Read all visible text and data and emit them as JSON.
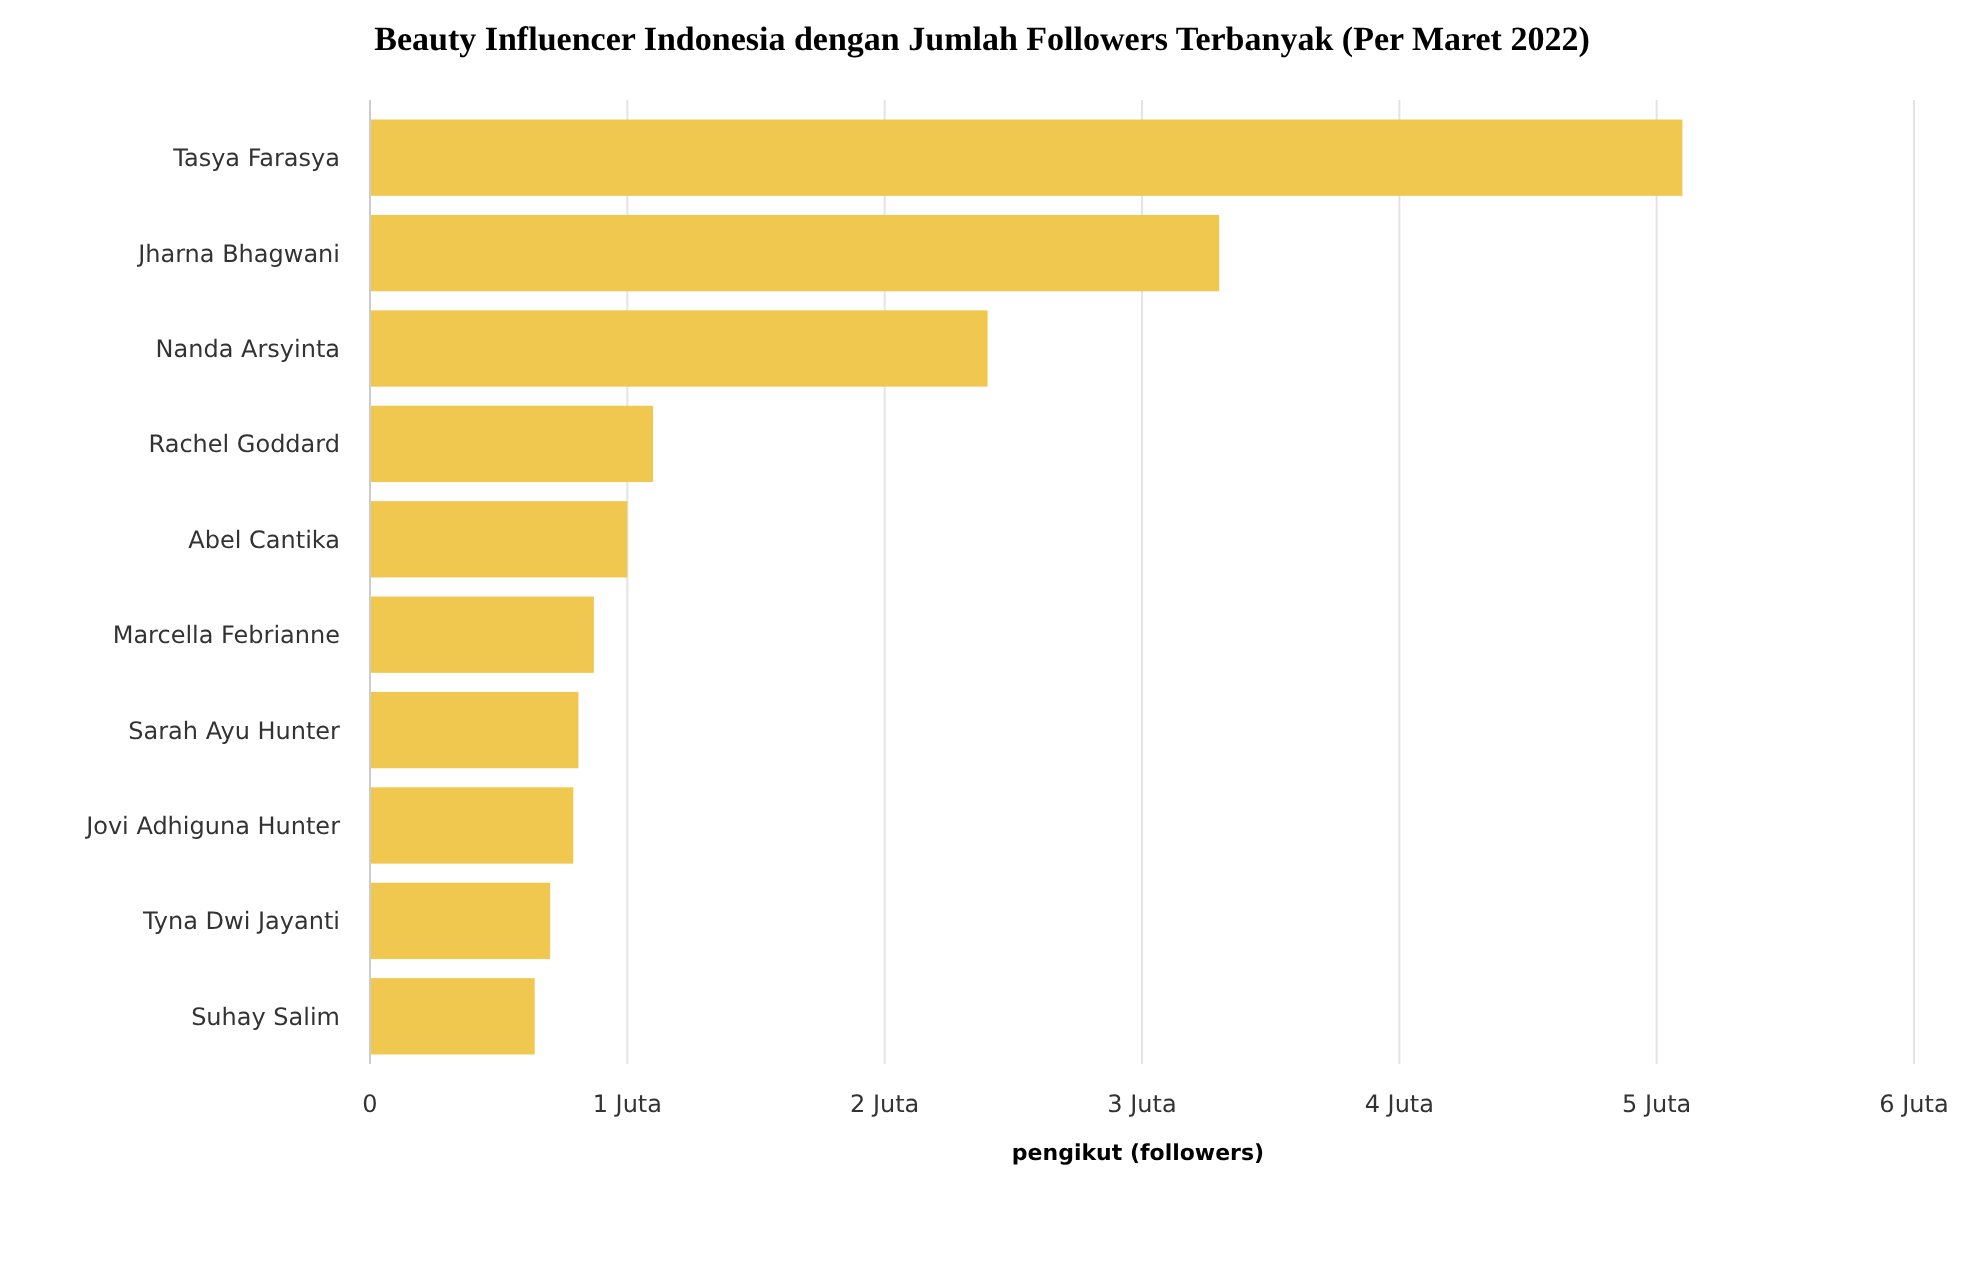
{
  "chart_data": {
    "type": "bar",
    "orientation": "horizontal",
    "title": "Beauty Influencer Indonesia dengan Jumlah Followers Terbanyak (Per Maret 2022)",
    "xlabel": "pengikut (followers)",
    "categories": [
      "Tasya Farasya",
      "Jharna Bhagwani",
      "Nanda Arsyinta",
      "Rachel Goddard",
      "Abel Cantika",
      "Marcella Febrianne",
      "Sarah Ayu Hunter",
      "Jovi Adhiguna Hunter",
      "Tyna Dwi Jayanti",
      "Suhay Salim"
    ],
    "values": [
      5.1,
      3.3,
      2.4,
      1.1,
      1.0,
      0.87,
      0.81,
      0.79,
      0.7,
      0.64
    ],
    "color": "#f0c850",
    "xlim": [
      0,
      6
    ],
    "xticks": [
      0,
      {
        "value": 1,
        "label": "1 Juta"
      },
      {
        "value": 2,
        "label": "2 Juta"
      },
      {
        "value": 3,
        "label": "3 Juta"
      },
      {
        "value": 4,
        "label": "4 Juta"
      },
      {
        "value": 5,
        "label": "5 Juta"
      },
      {
        "value": 6,
        "label": "6 Juta"
      }
    ],
    "grid": "x"
  }
}
